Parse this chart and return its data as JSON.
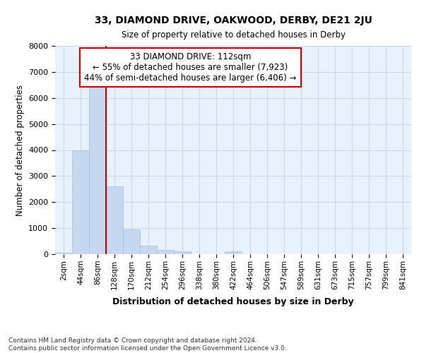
{
  "title": "33, DIAMOND DRIVE, OAKWOOD, DERBY, DE21 2JU",
  "subtitle": "Size of property relative to detached houses in Derby",
  "xlabel": "Distribution of detached houses by size in Derby",
  "ylabel": "Number of detached properties",
  "footer_line1": "Contains HM Land Registry data © Crown copyright and database right 2024.",
  "footer_line2": "Contains public sector information licensed under the Open Government Licence v3.0.",
  "bin_labels": [
    "2sqm",
    "44sqm",
    "86sqm",
    "128sqm",
    "170sqm",
    "212sqm",
    "254sqm",
    "296sqm",
    "338sqm",
    "380sqm",
    "422sqm",
    "464sqm",
    "506sqm",
    "547sqm",
    "589sqm",
    "631sqm",
    "673sqm",
    "715sqm",
    "757sqm",
    "799sqm",
    "841sqm"
  ],
  "bar_heights": [
    50,
    4000,
    6550,
    2600,
    950,
    330,
    150,
    100,
    0,
    0,
    100,
    0,
    0,
    0,
    0,
    0,
    0,
    0,
    0,
    0,
    0
  ],
  "bar_color": "#c5d8f0",
  "bar_edge_color": "#a0bedd",
  "grid_color": "#c8d8e8",
  "background_color": "#e8f2fc",
  "vline_color": "#cc0000",
  "vline_x": 2.5,
  "ylim": [
    0,
    8000
  ],
  "yticks": [
    0,
    1000,
    2000,
    3000,
    4000,
    5000,
    6000,
    7000,
    8000
  ],
  "annotation_title": "33 DIAMOND DRIVE: 112sqm",
  "annotation_line1": "← 55% of detached houses are smaller (7,923)",
  "annotation_line2": "44% of semi-detached houses are larger (6,406) →",
  "annotation_box_color": "#ffffff",
  "annotation_border_color": "#cc0000"
}
